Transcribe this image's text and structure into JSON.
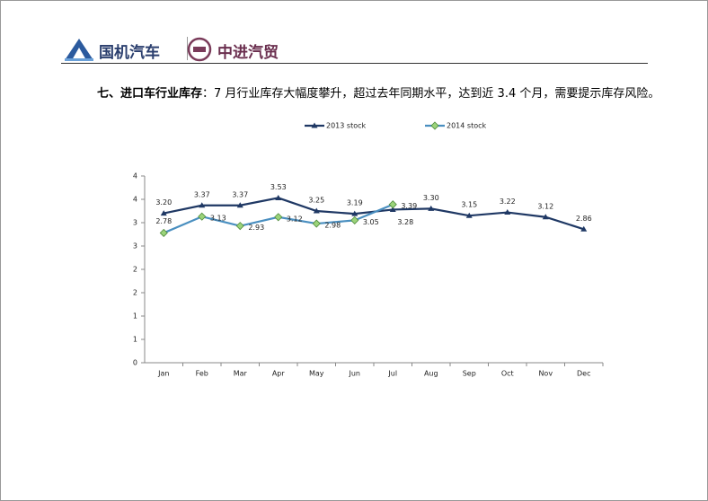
{
  "header": {
    "brand1": "国机汽车",
    "brand2": "中进汽贸"
  },
  "heading": {
    "lead": "七、进口车行业库存",
    "text": "：7 月行业库存大幅度攀升，超过去年同期水平，达到近 3.4 个月，需要提示库存风险。"
  },
  "chart_data": {
    "type": "line",
    "categories": [
      "Jan",
      "Feb",
      "Mar",
      "Apr",
      "May",
      "Jun",
      "Jul",
      "Aug",
      "Sep",
      "Oct",
      "Nov",
      "Dec"
    ],
    "series": [
      {
        "name": "2013 stock",
        "color": "#1f3864",
        "marker": "triangle",
        "values": [
          3.2,
          3.37,
          3.37,
          3.53,
          3.25,
          3.19,
          3.28,
          3.3,
          3.15,
          3.22,
          3.12,
          2.86
        ],
        "value_labels": [
          "3.20",
          "3.37",
          "3.37",
          "3.53",
          "3.25",
          "3.19",
          "3.28",
          "3.30",
          "3.15",
          "3.22",
          "3.12",
          "2.86"
        ]
      },
      {
        "name": "2014 stock",
        "color": "#4a8fc0",
        "marker": "diamond",
        "values": [
          2.78,
          3.13,
          2.93,
          3.12,
          2.98,
          3.05,
          3.39,
          null,
          null,
          null,
          null,
          null
        ],
        "value_labels": [
          "2.78",
          "3.13",
          "2.93",
          "3.12",
          "2.98",
          "3.05",
          "3.39",
          null,
          null,
          null,
          null,
          null
        ]
      }
    ],
    "ylim": [
      0,
      4
    ],
    "yticks": [
      0,
      {
        "value": 0.5,
        "label": "1"
      },
      1,
      {
        "value": 1.5,
        "label": "2"
      },
      2,
      {
        "value": 2.5,
        "label": "3"
      },
      3,
      {
        "value": 3.5,
        "label": "4"
      },
      4
    ],
    "legend": "top"
  }
}
